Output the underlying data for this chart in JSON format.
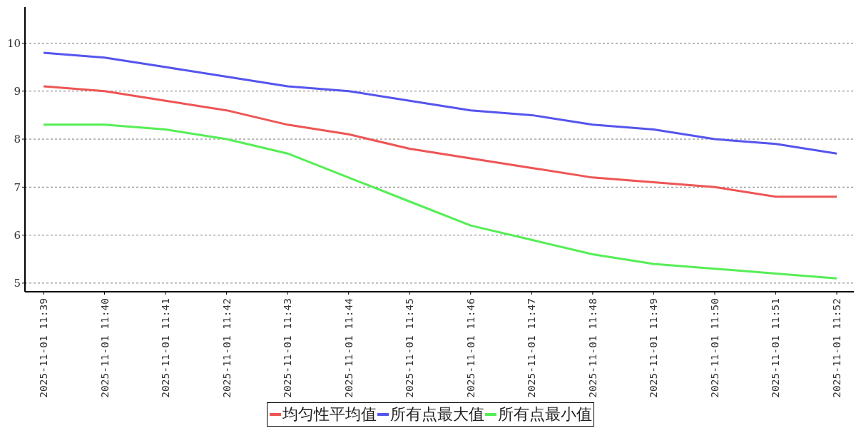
{
  "chart_data": {
    "type": "line",
    "categories": [
      "2025-11-01 11:39",
      "2025-11-01 11:40",
      "2025-11-01 11:41",
      "2025-11-01 11:42",
      "2025-11-01 11:43",
      "2025-11-01 11:44",
      "2025-11-01 11:45",
      "2025-11-01 11:46",
      "2025-11-01 11:47",
      "2025-11-01 11:48",
      "2025-11-01 11:49",
      "2025-11-01 11:50",
      "2025-11-01 11:51",
      "2025-11-01 11:52"
    ],
    "series": [
      {
        "name": "均匀性平均值",
        "color": "#ee5555",
        "values": [
          9.1,
          9.0,
          8.8,
          8.6,
          8.3,
          8.1,
          7.8,
          7.6,
          7.4,
          7.2,
          7.1,
          7.0,
          6.8,
          6.8
        ]
      },
      {
        "name": "所有点最大值",
        "color": "#5555ee",
        "values": [
          9.8,
          9.7,
          9.5,
          9.3,
          9.1,
          9.0,
          8.8,
          8.6,
          8.5,
          8.3,
          8.2,
          8.0,
          7.9,
          7.7
        ]
      },
      {
        "name": "所有点最小值",
        "color": "#55ee55",
        "values": [
          8.3,
          8.3,
          8.2,
          8.0,
          7.7,
          7.2,
          6.7,
          6.2,
          5.9,
          5.6,
          5.4,
          5.3,
          5.2,
          5.1
        ]
      }
    ],
    "ylim": [
      4.82,
      10.75
    ],
    "yticks": [
      5,
      6,
      7,
      8,
      9,
      10
    ],
    "grid": "y",
    "legend": "bottom",
    "line_style": "solid"
  }
}
